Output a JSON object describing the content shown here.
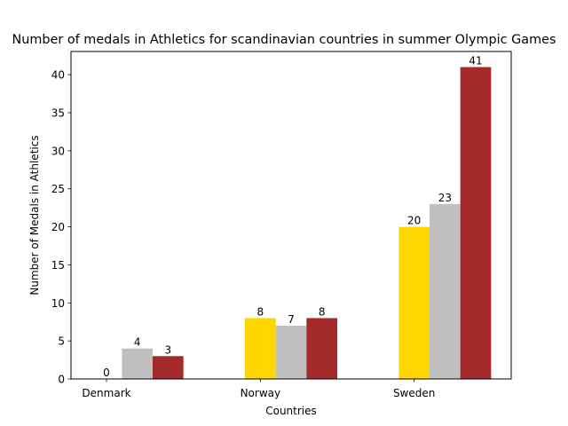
{
  "chart_data": {
    "type": "bar",
    "title": "Number of medals in Athletics for scandinavian countries in summer Olympic Games",
    "xlabel": "Countries",
    "ylabel": "Number of Medals in Athletics",
    "categories": [
      "Denmark",
      "Norway",
      "Sweden"
    ],
    "series": [
      {
        "values": [
          0,
          8,
          20
        ],
        "color": "#FFD700"
      },
      {
        "values": [
          4,
          7,
          23
        ],
        "color": "#C0C0C0"
      },
      {
        "values": [
          3,
          8,
          41
        ],
        "color": "#A52A2A"
      }
    ],
    "ylim": [
      0,
      43.05
    ],
    "yticks": [
      0,
      5,
      10,
      15,
      20,
      25,
      30,
      35,
      40
    ],
    "grid": false,
    "legend": "none"
  }
}
